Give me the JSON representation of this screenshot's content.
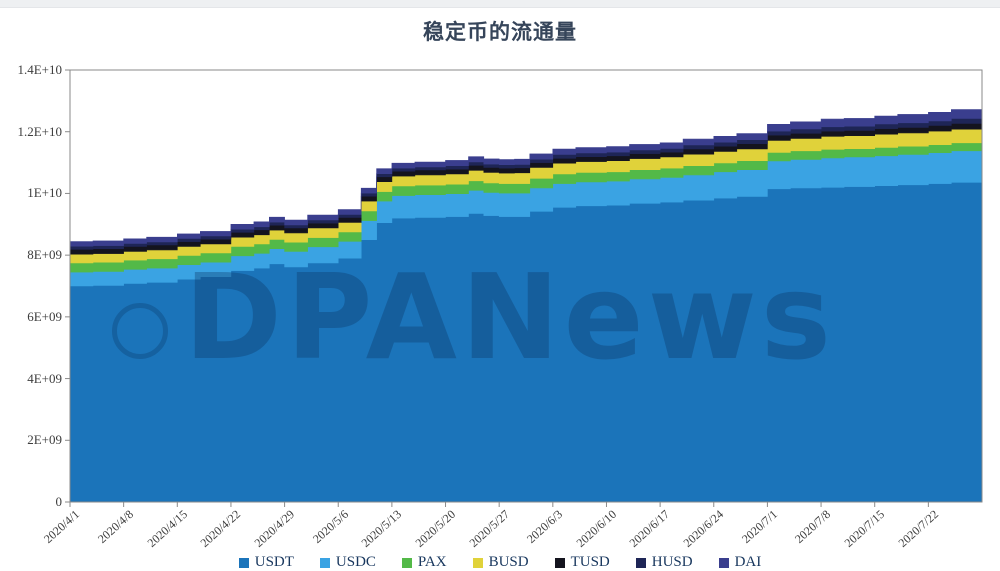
{
  "page": {
    "title": "稳定币的流通量"
  },
  "watermark": {
    "text": "DPANews"
  },
  "chart_data": {
    "type": "area",
    "stacked": true,
    "title": "稳定币的流通量",
    "xlabel": "",
    "ylabel": "",
    "ylim": [
      0,
      14000000000
    ],
    "grid": false,
    "legend_position": "bottom",
    "y_tick_labels": [
      "0",
      "2E+09",
      "4E+09",
      "6E+09",
      "8E+09",
      "1E+10",
      "1.2E+10",
      "1.4E+10"
    ],
    "x_tick_labels": [
      "2020/4/1",
      "2020/4/8",
      "2020/4/15",
      "2020/4/22",
      "2020/4/29",
      "2020/5/6",
      "2020/5/13",
      "2020/5/20",
      "2020/5/27",
      "2020/6/3",
      "2020/6/10",
      "2020/6/17",
      "2020/6/24",
      "2020/7/1",
      "2020/7/8",
      "2020/7/15",
      "2020/7/22"
    ],
    "x_day_range": [
      0,
      119
    ],
    "x_days": [
      0,
      3,
      7,
      10,
      14,
      17,
      21,
      24,
      26,
      28,
      31,
      35,
      38,
      40,
      42,
      45,
      49,
      52,
      54,
      56,
      58,
      60,
      63,
      66,
      70,
      73,
      77,
      80,
      84,
      87,
      91,
      94,
      98,
      101,
      105,
      108,
      112,
      115,
      119
    ],
    "value_unit": 1000000000,
    "series": [
      {
        "name": "USDT",
        "color": "#1b74ba",
        "values": [
          7.0,
          7.02,
          7.08,
          7.12,
          7.22,
          7.3,
          7.5,
          7.58,
          7.72,
          7.62,
          7.75,
          7.9,
          8.5,
          9.05,
          9.2,
          9.22,
          9.25,
          9.35,
          9.28,
          9.25,
          9.25,
          9.42,
          9.55,
          9.6,
          9.62,
          9.68,
          9.72,
          9.78,
          9.85,
          9.9,
          10.15,
          10.18,
          10.2,
          10.22,
          10.25,
          10.28,
          10.32,
          10.36,
          10.55
        ]
      },
      {
        "name": "USDC",
        "color": "#3aa3e3",
        "values": [
          0.45,
          0.45,
          0.46,
          0.46,
          0.47,
          0.47,
          0.48,
          0.48,
          0.49,
          0.5,
          0.52,
          0.55,
          0.62,
          0.7,
          0.73,
          0.74,
          0.74,
          0.75,
          0.75,
          0.76,
          0.76,
          0.76,
          0.77,
          0.77,
          0.78,
          0.79,
          0.8,
          0.82,
          0.85,
          0.87,
          0.9,
          0.92,
          0.95,
          0.96,
          0.97,
          0.98,
          1.0,
          1.02,
          1.05
        ]
      },
      {
        "name": "PAX",
        "color": "#53b948",
        "values": [
          0.3,
          0.3,
          0.3,
          0.3,
          0.3,
          0.3,
          0.3,
          0.3,
          0.3,
          0.3,
          0.3,
          0.3,
          0.31,
          0.31,
          0.31,
          0.31,
          0.31,
          0.31,
          0.31,
          0.31,
          0.31,
          0.31,
          0.31,
          0.31,
          0.3,
          0.3,
          0.3,
          0.3,
          0.29,
          0.29,
          0.28,
          0.28,
          0.28,
          0.27,
          0.27,
          0.27,
          0.26,
          0.26,
          0.26
        ]
      },
      {
        "name": "BUSD",
        "color": "#e0d23a",
        "values": [
          0.28,
          0.28,
          0.28,
          0.29,
          0.29,
          0.29,
          0.3,
          0.3,
          0.3,
          0.3,
          0.31,
          0.31,
          0.32,
          0.32,
          0.32,
          0.33,
          0.33,
          0.34,
          0.34,
          0.34,
          0.35,
          0.35,
          0.35,
          0.35,
          0.36,
          0.36,
          0.36,
          0.37,
          0.37,
          0.38,
          0.39,
          0.4,
          0.42,
          0.42,
          0.43,
          0.43,
          0.44,
          0.44,
          0.45
        ]
      },
      {
        "name": "TUSD",
        "color": "#14141e",
        "values": [
          0.16,
          0.16,
          0.16,
          0.16,
          0.16,
          0.16,
          0.16,
          0.16,
          0.16,
          0.16,
          0.16,
          0.16,
          0.16,
          0.16,
          0.16,
          0.16,
          0.16,
          0.16,
          0.16,
          0.16,
          0.16,
          0.16,
          0.16,
          0.16,
          0.16,
          0.16,
          0.16,
          0.17,
          0.17,
          0.17,
          0.17,
          0.17,
          0.17,
          0.17,
          0.18,
          0.18,
          0.18,
          0.19,
          0.19
        ]
      },
      {
        "name": "HUSD",
        "color": "#1e2556",
        "values": [
          0.1,
          0.1,
          0.1,
          0.1,
          0.1,
          0.1,
          0.1,
          0.1,
          0.1,
          0.1,
          0.1,
          0.1,
          0.1,
          0.1,
          0.1,
          0.1,
          0.11,
          0.11,
          0.11,
          0.11,
          0.11,
          0.11,
          0.12,
          0.12,
          0.12,
          0.12,
          0.12,
          0.13,
          0.13,
          0.13,
          0.13,
          0.14,
          0.14,
          0.14,
          0.15,
          0.15,
          0.15,
          0.16,
          0.16
        ]
      },
      {
        "name": "DAI",
        "color": "#3a3e8e",
        "values": [
          0.15,
          0.15,
          0.15,
          0.15,
          0.15,
          0.15,
          0.16,
          0.16,
          0.16,
          0.16,
          0.16,
          0.16,
          0.16,
          0.16,
          0.16,
          0.16,
          0.17,
          0.17,
          0.17,
          0.17,
          0.17,
          0.17,
          0.18,
          0.18,
          0.18,
          0.18,
          0.18,
          0.19,
          0.19,
          0.2,
          0.22,
          0.23,
          0.25,
          0.25,
          0.26,
          0.27,
          0.28,
          0.29,
          0.3
        ]
      }
    ],
    "legend": [
      {
        "label": "USDT",
        "color": "#1b74ba"
      },
      {
        "label": "USDC",
        "color": "#3aa3e3"
      },
      {
        "label": "PAX",
        "color": "#53b948"
      },
      {
        "label": "BUSD",
        "color": "#e0d23a"
      },
      {
        "label": "TUSD",
        "color": "#14141e"
      },
      {
        "label": "HUSD",
        "color": "#1e2556"
      },
      {
        "label": "DAI",
        "color": "#3a3e8e"
      }
    ]
  }
}
